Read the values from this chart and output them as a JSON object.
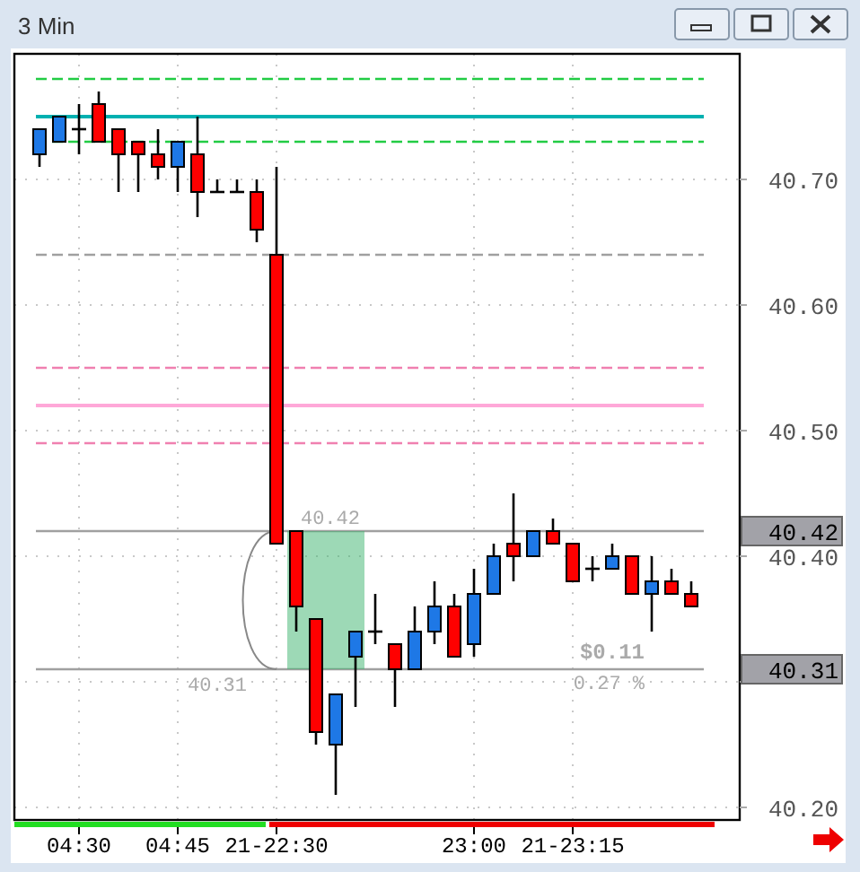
{
  "chart_data": {
    "type": "candlestick",
    "title": "3 Min",
    "categories": [
      null,
      null,
      "04:30",
      null,
      null,
      null,
      null,
      "04:45",
      null,
      null,
      null,
      null,
      "21-22:30",
      null,
      null,
      null,
      null,
      null,
      null,
      null,
      null,
      null,
      "23:00",
      null,
      null,
      null,
      null,
      "21-23:15",
      null,
      null,
      null,
      null,
      null,
      null
    ],
    "ohlc": [
      [
        40.72,
        40.74,
        40.71,
        40.74
      ],
      [
        40.73,
        40.75,
        40.73,
        40.75
      ],
      [
        40.74,
        40.76,
        40.72,
        40.74
      ],
      [
        40.76,
        40.77,
        40.73,
        40.73
      ],
      [
        40.74,
        40.74,
        40.69,
        40.72
      ],
      [
        40.73,
        40.73,
        40.69,
        40.72
      ],
      [
        40.72,
        40.74,
        40.7,
        40.71
      ],
      [
        40.71,
        40.73,
        40.69,
        40.73
      ],
      [
        40.72,
        40.75,
        40.67,
        40.69
      ],
      [
        40.69,
        40.7,
        40.69,
        40.69
      ],
      [
        40.69,
        40.7,
        40.69,
        40.69
      ],
      [
        40.69,
        40.7,
        40.65,
        40.66
      ],
      [
        40.64,
        40.71,
        40.41,
        40.41
      ],
      [
        40.42,
        40.42,
        40.34,
        40.36
      ],
      [
        40.35,
        40.35,
        40.25,
        40.26
      ],
      [
        40.25,
        40.29,
        40.21,
        40.29
      ],
      [
        40.32,
        40.34,
        40.28,
        40.34
      ],
      [
        40.34,
        40.37,
        40.33,
        40.34
      ],
      [
        40.33,
        40.33,
        40.28,
        40.31
      ],
      [
        40.31,
        40.36,
        40.31,
        40.34
      ],
      [
        40.34,
        40.38,
        40.33,
        40.36
      ],
      [
        40.36,
        40.37,
        40.32,
        40.32
      ],
      [
        40.33,
        40.39,
        40.32,
        40.37
      ],
      [
        40.37,
        40.41,
        40.37,
        40.4
      ],
      [
        40.41,
        40.45,
        40.38,
        40.4
      ],
      [
        40.4,
        40.42,
        40.4,
        40.42
      ],
      [
        40.42,
        40.43,
        40.41,
        40.41
      ],
      [
        40.41,
        40.41,
        40.38,
        40.38
      ],
      [
        40.39,
        40.4,
        40.38,
        40.39
      ],
      [
        40.39,
        40.41,
        40.39,
        40.4
      ],
      [
        40.4,
        40.4,
        40.37,
        40.37
      ],
      [
        40.37,
        40.4,
        40.34,
        40.38
      ],
      [
        40.38,
        40.39,
        40.37,
        40.37
      ],
      [
        40.37,
        40.38,
        40.36,
        40.36
      ]
    ],
    "colors": [
      "#1e78e6",
      "#1e78e6",
      "#000000",
      "#ff0000",
      "#ff0000",
      "#ff0000",
      "#ff0000",
      "#1e78e6",
      "#ff0000",
      "#000000",
      "#000000",
      "#ff0000",
      "#ff0000",
      "#ff0000",
      "#ff0000",
      "#1e78e6",
      "#1e78e6",
      "#000000",
      "#ff0000",
      "#1e78e6",
      "#1e78e6",
      "#ff0000",
      "#1e78e6",
      "#1e78e6",
      "#ff0000",
      "#1e78e6",
      "#ff0000",
      "#ff0000",
      "#000000",
      "#1e78e6",
      "#ff0000",
      "#1e78e6",
      "#ff0000",
      "#ff0000"
    ],
    "ylim": [
      40.19,
      40.8
    ],
    "yticks": [
      {
        "value": 40.2,
        "label": "40.20"
      },
      {
        "value": 40.3,
        "label": null
      },
      {
        "value": 40.4,
        "label": "40.40"
      },
      {
        "value": 40.5,
        "label": "40.50"
      },
      {
        "value": 40.6,
        "label": "40.60"
      },
      {
        "value": 40.7,
        "label": "40.70"
      }
    ],
    "grid": true,
    "ref_lines": [
      {
        "axis": "y",
        "value": 40.78,
        "color": "#22cc44",
        "line_style": "dashed"
      },
      {
        "axis": "y",
        "value": 40.75,
        "color": "#00b0b0",
        "line_style": "solid"
      },
      {
        "axis": "y",
        "value": 40.73,
        "color": "#22cc44",
        "line_style": "dashed"
      },
      {
        "axis": "y",
        "value": 40.64,
        "color": "#a0a0a0",
        "line_style": "dashed"
      },
      {
        "axis": "y",
        "value": 40.55,
        "color": "#f080b0",
        "line_style": "dashed"
      },
      {
        "axis": "y",
        "value": 40.52,
        "color": "#ffa8d8",
        "line_style": "solid"
      },
      {
        "axis": "y",
        "value": 40.49,
        "color": "#f080b0",
        "line_style": "dashed"
      },
      {
        "axis": "y",
        "value": 40.42,
        "label": "40.42",
        "color": "#a0a0a0",
        "line_style": "solid"
      },
      {
        "axis": "y",
        "value": 40.31,
        "label": "40.31",
        "color": "#a0a0a0",
        "line_style": "solid"
      }
    ],
    "annotations": [
      {
        "text": "40.42",
        "y": 40.42
      },
      {
        "text": "40.31",
        "y": 40.31
      },
      "$0.11",
      "0.27 %"
    ]
  }
}
